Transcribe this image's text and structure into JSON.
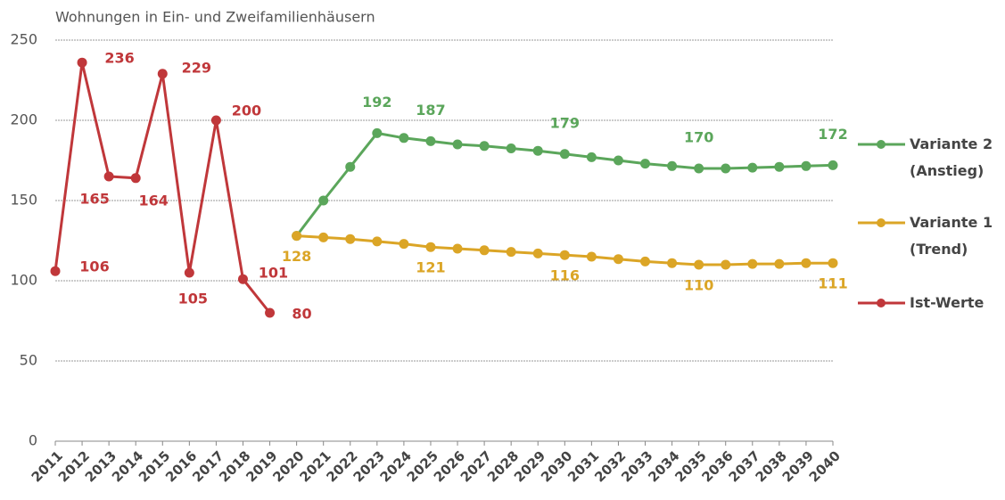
{
  "chart_data": {
    "type": "line",
    "axis_title": "Wohnungen in Ein- und Zweifamilienhäusern",
    "categories": [
      "2011",
      "2012",
      "2013",
      "2014",
      "2015",
      "2016",
      "2017",
      "2018",
      "2019",
      "2020",
      "2021",
      "2022",
      "2023",
      "2024",
      "2025",
      "2026",
      "2027",
      "2028",
      "2029",
      "2030",
      "2031",
      "2032",
      "2033",
      "2034",
      "2035",
      "2036",
      "2037",
      "2038",
      "2039",
      "2040"
    ],
    "ylim": [
      0,
      250
    ],
    "yticks": [
      0,
      50,
      100,
      150,
      200,
      250
    ],
    "grid": true,
    "series": [
      {
        "name": "Variante 2 (Anstieg)",
        "color": "#5ba65b",
        "values": [
          null,
          null,
          null,
          null,
          null,
          null,
          null,
          null,
          null,
          128,
          150,
          171,
          192,
          189,
          187,
          185,
          184,
          182.5,
          181,
          179,
          177,
          175,
          173,
          171.5,
          170,
          170,
          170.5,
          171,
          171.5,
          172
        ],
        "value_labels": [
          null,
          null,
          null,
          null,
          null,
          null,
          null,
          null,
          null,
          null,
          null,
          null,
          "192",
          null,
          "187",
          null,
          null,
          null,
          null,
          "179",
          null,
          null,
          null,
          null,
          "170",
          null,
          null,
          null,
          null,
          "172"
        ]
      },
      {
        "name": "Variante 1 (Trend)",
        "color": "#dba526",
        "values": [
          null,
          null,
          null,
          null,
          null,
          null,
          null,
          null,
          null,
          128,
          127,
          126,
          124.5,
          123,
          121,
          120,
          119,
          118,
          117,
          116,
          115,
          113.5,
          112,
          111,
          110,
          110,
          110.5,
          110.5,
          111,
          111
        ],
        "value_labels": [
          null,
          null,
          null,
          null,
          null,
          null,
          null,
          null,
          null,
          "128",
          null,
          null,
          null,
          null,
          "121",
          null,
          null,
          null,
          null,
          "116",
          null,
          null,
          null,
          null,
          "110",
          null,
          null,
          null,
          null,
          "111"
        ]
      },
      {
        "name": "Ist-Werte",
        "color": "#c0373a",
        "values": [
          106,
          236,
          165,
          164,
          229,
          105,
          200,
          101,
          80,
          null,
          null,
          null,
          null,
          null,
          null,
          null,
          null,
          null,
          null,
          null,
          null,
          null,
          null,
          null,
          null,
          null,
          null,
          null,
          null,
          null
        ],
        "value_labels": [
          "106",
          "236",
          "165",
          "164",
          "229",
          "105",
          "200",
          "101",
          "80",
          null,
          null,
          null,
          null,
          null,
          null,
          null,
          null,
          null,
          null,
          null,
          null,
          null,
          null,
          null,
          null,
          null,
          null,
          null,
          null,
          null
        ]
      }
    ]
  }
}
